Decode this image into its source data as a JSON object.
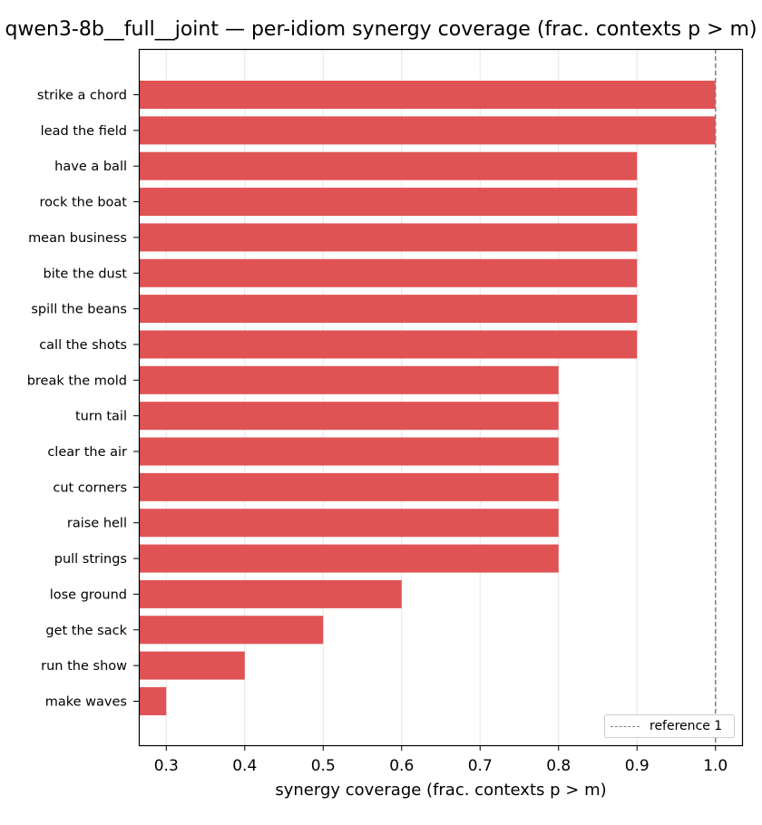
{
  "chart_data": {
    "type": "bar",
    "orientation": "horizontal",
    "title": "qwen3-8b__full__joint — per-idiom synergy coverage  (frac. contexts p > m)",
    "xlabel": "synergy coverage  (frac. contexts p > m)",
    "ylabel": "",
    "categories": [
      "strike a chord",
      "lead the field",
      "have a ball",
      "rock the boat",
      "mean business",
      "bite the dust",
      "spill the beans",
      "call the shots",
      "break the mold",
      "turn tail",
      "clear the air",
      "cut corners",
      "raise hell",
      "pull strings",
      "lose ground",
      "get the sack",
      "run the show",
      "make waves"
    ],
    "values": [
      1.0,
      1.0,
      0.9,
      0.9,
      0.9,
      0.9,
      0.9,
      0.9,
      0.8,
      0.8,
      0.8,
      0.8,
      0.8,
      0.8,
      0.6,
      0.5,
      0.4,
      0.3
    ],
    "xlim": [
      0.265,
      1.035
    ],
    "xticks": [
      0.3,
      0.4,
      0.5,
      0.6,
      0.7,
      0.8,
      0.9,
      1.0
    ],
    "xtick_labels": [
      "0.3",
      "0.4",
      "0.5",
      "0.6",
      "0.7",
      "0.8",
      "0.9",
      "1.0"
    ],
    "grid": "x",
    "bar_color": "#e05355",
    "reference_line": {
      "value": 1.0,
      "label": "reference 1",
      "color": "#808080",
      "style": "dashed"
    },
    "legend": {
      "position": "bottom-right",
      "entries": [
        "reference 1"
      ]
    }
  }
}
